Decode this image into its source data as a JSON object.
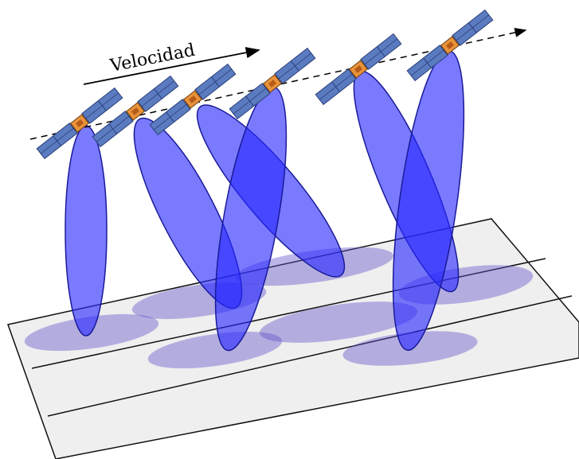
{
  "label": "Velocidad"
}
